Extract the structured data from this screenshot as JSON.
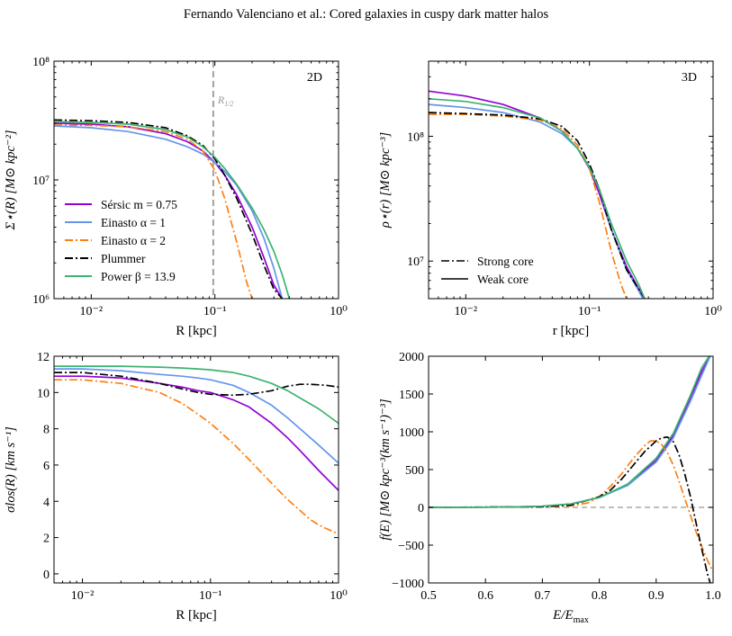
{
  "header": "Fernando Valenciano et al.: Cored galaxies in cuspy dark matter halos",
  "colors": {
    "sersic": "#9400d3",
    "einasto1": "#6495ed",
    "einasto2": "#ff7f0e",
    "plummer": "#000000",
    "power": "#3cb371",
    "ref": "#999999"
  },
  "chart_data": [
    {
      "type": "line",
      "panel_label": "2D",
      "xlabel": "R  [kpc]",
      "ylabel": "Σ⋆(R) [M⊙ kpc⁻²]",
      "xscale": "log",
      "yscale": "log",
      "xlim": [
        0.005,
        1.0
      ],
      "ylim": [
        1000000,
        100000000
      ],
      "xticks": [
        {
          "v": 0.01,
          "label": "10⁻²"
        },
        {
          "v": 0.1,
          "label": "10⁻¹"
        },
        {
          "v": 1,
          "label": "10⁰"
        }
      ],
      "yticks": [
        {
          "v": 1000000,
          "label": "10⁶"
        },
        {
          "v": 10000000,
          "label": "10⁷"
        },
        {
          "v": 100000000,
          "label": "10⁸"
        }
      ],
      "vline": {
        "x": 0.097,
        "label": "R",
        "label_sub": "1/2"
      },
      "legend": {
        "placement": "lower-left",
        "entries": [
          {
            "label": "Sérsic m = 0.75",
            "series": 0
          },
          {
            "label": "Einasto α = 1",
            "series": 1
          },
          {
            "label": "Einasto α = 2",
            "series": 2
          },
          {
            "label": "Plummer",
            "series": 3
          },
          {
            "label": "Power β = 13.9",
            "series": 4
          }
        ]
      },
      "series": [
        {
          "name": "Sérsic m = 0.75",
          "color": "#9400d3",
          "style": "solid",
          "x": [
            0.005,
            0.01,
            0.02,
            0.04,
            0.06,
            0.08,
            0.1,
            0.12,
            0.15,
            0.2,
            0.25,
            0.3,
            0.35
          ],
          "y": [
            30000000,
            29500000,
            28000000,
            24500000,
            21000000,
            17500000,
            14000000,
            11000000,
            7500000,
            4000000,
            2200000,
            1300000,
            1000000
          ]
        },
        {
          "name": "Einasto α = 1",
          "color": "#6495ed",
          "style": "solid",
          "x": [
            0.005,
            0.01,
            0.02,
            0.04,
            0.06,
            0.08,
            0.1,
            0.12,
            0.15,
            0.2,
            0.25,
            0.3,
            0.35
          ],
          "y": [
            28500000,
            27500000,
            25500000,
            22000000,
            19000000,
            16500000,
            14000000,
            11800000,
            9000000,
            5500000,
            3200000,
            1800000,
            1000000
          ]
        },
        {
          "name": "Einasto α = 2",
          "color": "#ff7f0e",
          "style": "dashdot",
          "x": [
            0.005,
            0.01,
            0.02,
            0.04,
            0.06,
            0.08,
            0.1,
            0.12,
            0.15,
            0.18,
            0.2
          ],
          "y": [
            29000000,
            28800000,
            28000000,
            25500000,
            22000000,
            17500000,
            12000000,
            7000000,
            3000000,
            1400000,
            1000000
          ]
        },
        {
          "name": "Plummer",
          "color": "#000000",
          "style": "dashdot",
          "x": [
            0.005,
            0.01,
            0.02,
            0.04,
            0.06,
            0.08,
            0.1,
            0.12,
            0.15,
            0.2,
            0.25,
            0.3,
            0.35
          ],
          "y": [
            32000000,
            31500000,
            30500000,
            27500000,
            23500000,
            19500000,
            15000000,
            11000000,
            7000000,
            3500000,
            1900000,
            1200000,
            1000000
          ]
        },
        {
          "name": "Power β = 13.9",
          "color": "#3cb371",
          "style": "solid",
          "x": [
            0.005,
            0.01,
            0.02,
            0.04,
            0.06,
            0.08,
            0.1,
            0.12,
            0.15,
            0.2,
            0.25,
            0.3,
            0.35,
            0.4
          ],
          "y": [
            31000000,
            30500000,
            29500000,
            26500000,
            23000000,
            19000000,
            15500000,
            12500000,
            9200000,
            5800000,
            3800000,
            2500000,
            1600000,
            1000000
          ]
        }
      ]
    },
    {
      "type": "line",
      "panel_label": "3D",
      "xlabel": "r  [kpc]",
      "ylabel": "ρ⋆(r) [M⊙ kpc⁻³]",
      "xscale": "log",
      "yscale": "log",
      "xlim": [
        0.005,
        1.0
      ],
      "ylim": [
        5000000,
        400000000
      ],
      "xticks": [
        {
          "v": 0.01,
          "label": "10⁻²"
        },
        {
          "v": 0.1,
          "label": "10⁻¹"
        },
        {
          "v": 1,
          "label": "10⁰"
        }
      ],
      "yticks": [
        {
          "v": 10000000,
          "label": "10⁷"
        },
        {
          "v": 100000000,
          "label": "10⁸"
        }
      ],
      "legend": {
        "placement": "lower-left",
        "entries": [
          {
            "label": "Strong core",
            "style": "dashdot"
          },
          {
            "label": "Weak core",
            "style": "solid"
          }
        ]
      },
      "series": [
        {
          "name": "Sérsic m = 0.75",
          "color": "#9400d3",
          "style": "solid",
          "x": [
            0.005,
            0.01,
            0.02,
            0.04,
            0.06,
            0.08,
            0.1,
            0.12,
            0.15,
            0.2,
            0.25,
            0.28
          ],
          "y": [
            230000000,
            210000000,
            180000000,
            140000000,
            110000000,
            80000000,
            55000000,
            35000000,
            18000000,
            9000000,
            6000000,
            5000000
          ]
        },
        {
          "name": "Einasto α = 1",
          "color": "#6495ed",
          "style": "solid",
          "x": [
            0.005,
            0.01,
            0.02,
            0.04,
            0.06,
            0.08,
            0.1,
            0.12,
            0.15,
            0.2,
            0.25,
            0.27
          ],
          "y": [
            180000000,
            170000000,
            155000000,
            130000000,
            105000000,
            80000000,
            57000000,
            38000000,
            18000000,
            8500000,
            5800000,
            5000000
          ]
        },
        {
          "name": "Einasto α = 2",
          "color": "#ff7f0e",
          "style": "dashdot",
          "x": [
            0.005,
            0.01,
            0.02,
            0.04,
            0.06,
            0.08,
            0.1,
            0.12,
            0.15,
            0.18,
            0.2
          ],
          "y": [
            150000000,
            150000000,
            145000000,
            135000000,
            115000000,
            85000000,
            55000000,
            30000000,
            12000000,
            6500000,
            5000000
          ]
        },
        {
          "name": "Plummer",
          "color": "#000000",
          "style": "dashdot",
          "x": [
            0.005,
            0.01,
            0.02,
            0.04,
            0.06,
            0.08,
            0.1,
            0.12,
            0.15,
            0.2,
            0.25,
            0.28
          ],
          "y": [
            155000000,
            152000000,
            148000000,
            138000000,
            120000000,
            92000000,
            60000000,
            38000000,
            18000000,
            8500000,
            6000000,
            5000000
          ]
        },
        {
          "name": "Power β = 13.9",
          "color": "#3cb371",
          "style": "solid",
          "x": [
            0.005,
            0.01,
            0.02,
            0.04,
            0.06,
            0.08,
            0.1,
            0.12,
            0.15,
            0.2,
            0.25,
            0.28
          ],
          "y": [
            200000000,
            190000000,
            170000000,
            140000000,
            110000000,
            80000000,
            56000000,
            38000000,
            20000000,
            10000000,
            6500000,
            5000000
          ]
        }
      ]
    },
    {
      "type": "line",
      "xlabel": "R  [kpc]",
      "ylabel": "σlos(R) [km s⁻¹]",
      "xscale": "log",
      "yscale": "linear",
      "xlim": [
        0.006,
        1.0
      ],
      "ylim": [
        -0.5,
        12
      ],
      "xticks": [
        {
          "v": 0.01,
          "label": "10⁻²"
        },
        {
          "v": 0.1,
          "label": "10⁻¹"
        },
        {
          "v": 1,
          "label": "10⁰"
        }
      ],
      "yticks": [
        {
          "v": 0,
          "label": "0"
        },
        {
          "v": 2,
          "label": "2"
        },
        {
          "v": 4,
          "label": "4"
        },
        {
          "v": 6,
          "label": "6"
        },
        {
          "v": 8,
          "label": "8"
        },
        {
          "v": 10,
          "label": "10"
        },
        {
          "v": 12,
          "label": "12"
        }
      ],
      "series": [
        {
          "name": "Sérsic m = 0.75",
          "color": "#9400d3",
          "style": "solid",
          "x": [
            0.006,
            0.01,
            0.02,
            0.04,
            0.06,
            0.08,
            0.1,
            0.15,
            0.2,
            0.3,
            0.4,
            0.5,
            0.7,
            1.0
          ],
          "y": [
            10.9,
            10.9,
            10.8,
            10.5,
            10.3,
            10.1,
            10.0,
            9.6,
            9.2,
            8.3,
            7.5,
            6.8,
            5.7,
            4.6
          ]
        },
        {
          "name": "Einasto α = 1",
          "color": "#6495ed",
          "style": "solid",
          "x": [
            0.006,
            0.01,
            0.02,
            0.04,
            0.06,
            0.08,
            0.1,
            0.15,
            0.2,
            0.3,
            0.4,
            0.5,
            0.7,
            1.0
          ],
          "y": [
            11.3,
            11.3,
            11.2,
            11.0,
            10.9,
            10.8,
            10.7,
            10.4,
            10.0,
            9.3,
            8.6,
            8.0,
            7.1,
            6.1
          ]
        },
        {
          "name": "Einasto α = 2",
          "color": "#ff7f0e",
          "style": "dashdot",
          "x": [
            0.006,
            0.01,
            0.02,
            0.04,
            0.06,
            0.08,
            0.1,
            0.15,
            0.2,
            0.3,
            0.4,
            0.5,
            0.6,
            0.7,
            0.8,
            1.0
          ],
          "y": [
            10.7,
            10.7,
            10.5,
            10.0,
            9.4,
            8.8,
            8.3,
            7.2,
            6.3,
            5.0,
            4.1,
            3.5,
            3.0,
            2.7,
            2.5,
            2.2
          ]
        },
        {
          "name": "Plummer",
          "color": "#000000",
          "style": "dashdot",
          "x": [
            0.006,
            0.01,
            0.02,
            0.04,
            0.06,
            0.08,
            0.1,
            0.15,
            0.2,
            0.3,
            0.4,
            0.5,
            0.6,
            0.8,
            1.0
          ],
          "y": [
            11.1,
            11.1,
            10.9,
            10.5,
            10.2,
            10.0,
            9.9,
            9.85,
            9.9,
            10.1,
            10.35,
            10.45,
            10.45,
            10.4,
            10.3
          ]
        },
        {
          "name": "Power β = 13.9",
          "color": "#3cb371",
          "style": "solid",
          "x": [
            0.006,
            0.01,
            0.02,
            0.04,
            0.06,
            0.08,
            0.1,
            0.15,
            0.2,
            0.3,
            0.4,
            0.5,
            0.7,
            1.0
          ],
          "y": [
            11.45,
            11.45,
            11.45,
            11.4,
            11.35,
            11.3,
            11.25,
            11.1,
            10.9,
            10.5,
            10.1,
            9.7,
            9.1,
            8.3
          ]
        }
      ]
    },
    {
      "type": "line",
      "xlabel": "E/E",
      "xlabel_sub": "max",
      "ylabel": "f(E) [M⊙ kpc⁻³(km s⁻¹)⁻³]",
      "xscale": "linear",
      "yscale": "linear",
      "xlim": [
        0.5,
        1.0
      ],
      "ylim": [
        -1000,
        2000
      ],
      "xticks": [
        {
          "v": 0.5,
          "label": "0.5"
        },
        {
          "v": 0.6,
          "label": "0.6"
        },
        {
          "v": 0.7,
          "label": "0.7"
        },
        {
          "v": 0.8,
          "label": "0.8"
        },
        {
          "v": 0.9,
          "label": "0.9"
        },
        {
          "v": 1.0,
          "label": "1.0"
        }
      ],
      "yticks": [
        {
          "v": -1000,
          "label": "−1000"
        },
        {
          "v": -500,
          "label": "−500"
        },
        {
          "v": 0,
          "label": "0"
        },
        {
          "v": 500,
          "label": "500"
        },
        {
          "v": 1000,
          "label": "1000"
        },
        {
          "v": 1500,
          "label": "1500"
        },
        {
          "v": 2000,
          "label": "2000"
        }
      ],
      "hline": {
        "y": 0
      },
      "series": [
        {
          "name": "Sérsic m = 0.75",
          "color": "#9400d3",
          "style": "solid",
          "x": [
            0.5,
            0.6,
            0.65,
            0.7,
            0.75,
            0.8,
            0.85,
            0.9,
            0.93,
            0.96,
            0.98,
            0.995
          ],
          "y": [
            0,
            2,
            6,
            15,
            45,
            130,
            300,
            620,
            950,
            1450,
            1800,
            2000
          ]
        },
        {
          "name": "Einasto α = 1",
          "color": "#6495ed",
          "style": "solid",
          "x": [
            0.5,
            0.6,
            0.65,
            0.7,
            0.75,
            0.8,
            0.85,
            0.9,
            0.93,
            0.96,
            0.98,
            0.995
          ],
          "y": [
            0,
            2,
            6,
            15,
            45,
            130,
            290,
            600,
            920,
            1400,
            1750,
            2000
          ]
        },
        {
          "name": "Einasto α = 2",
          "color": "#ff7f0e",
          "style": "dashdot",
          "x": [
            0.5,
            0.7,
            0.75,
            0.78,
            0.8,
            0.82,
            0.84,
            0.86,
            0.88,
            0.89,
            0.9,
            0.91,
            0.92,
            0.93,
            0.94,
            0.95,
            0.96,
            0.97,
            0.98,
            0.99,
            1.0
          ],
          "y": [
            0,
            5,
            20,
            60,
            140,
            280,
            450,
            650,
            820,
            880,
            880,
            830,
            720,
            560,
            350,
            120,
            -100,
            -320,
            -520,
            -700,
            -850
          ]
        },
        {
          "name": "Plummer",
          "color": "#000000",
          "style": "dashdot",
          "x": [
            0.5,
            0.7,
            0.75,
            0.8,
            0.82,
            0.84,
            0.86,
            0.88,
            0.9,
            0.91,
            0.92,
            0.93,
            0.94,
            0.95,
            0.96,
            0.97,
            0.98,
            0.99,
            0.995
          ],
          "y": [
            0,
            8,
            30,
            140,
            230,
            380,
            560,
            740,
            880,
            920,
            930,
            870,
            700,
            450,
            150,
            -200,
            -550,
            -880,
            -1000
          ]
        },
        {
          "name": "Power β = 13.9",
          "color": "#3cb371",
          "style": "solid",
          "x": [
            0.5,
            0.6,
            0.65,
            0.7,
            0.75,
            0.8,
            0.85,
            0.9,
            0.93,
            0.96,
            0.98,
            0.993
          ],
          "y": [
            0,
            2,
            6,
            15,
            45,
            130,
            310,
            650,
            980,
            1480,
            1850,
            2000
          ]
        }
      ]
    }
  ]
}
